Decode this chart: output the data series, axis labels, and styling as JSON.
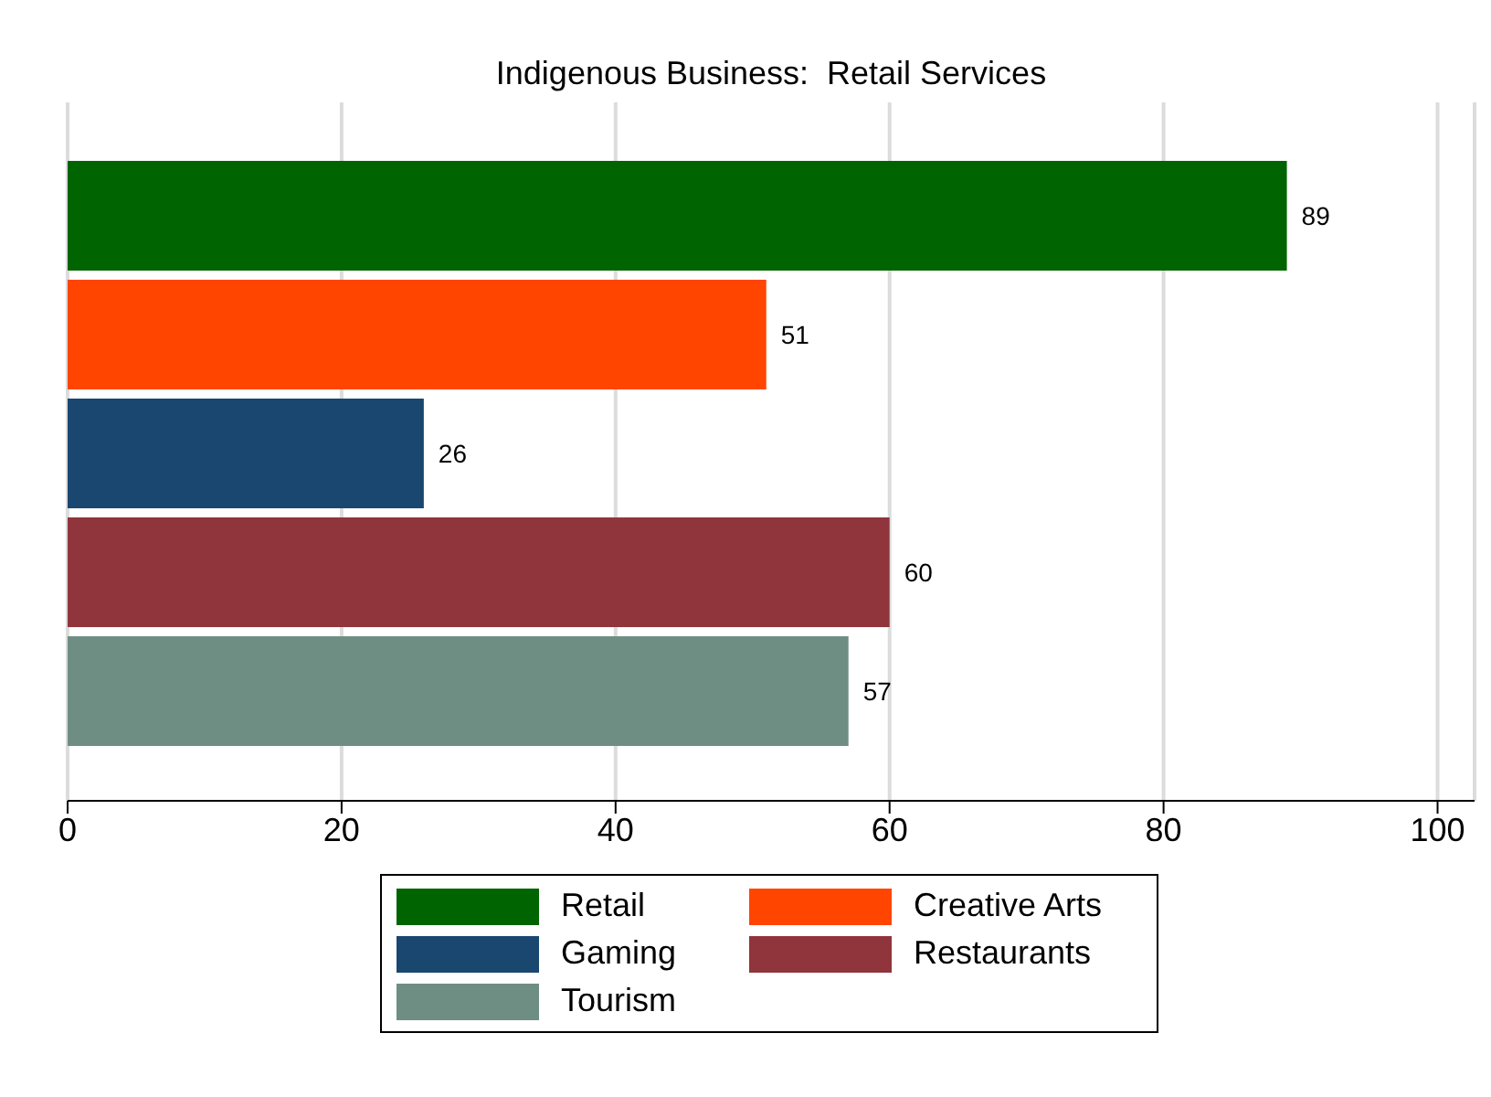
{
  "chart_data": {
    "type": "bar",
    "orientation": "horizontal",
    "title": "Indigenous Business:  Retail Services",
    "categories": [
      null
    ],
    "series": [
      {
        "name": "Retail",
        "color": "#006400",
        "values": [
          89
        ]
      },
      {
        "name": "Creative Arts",
        "color": "#ff4500",
        "values": [
          51
        ]
      },
      {
        "name": "Gaming",
        "color": "#1a476f",
        "values": [
          26
        ]
      },
      {
        "name": "Restaurants",
        "color": "#90353b",
        "values": [
          60
        ]
      },
      {
        "name": "Tourism",
        "color": "#6e8e84",
        "values": [
          57
        ]
      }
    ],
    "xlim": [
      0,
      102.7
    ],
    "xticks": [
      0,
      20,
      40,
      60,
      80,
      100
    ],
    "grid": "x",
    "data_labels": true,
    "legend": "bottom"
  }
}
